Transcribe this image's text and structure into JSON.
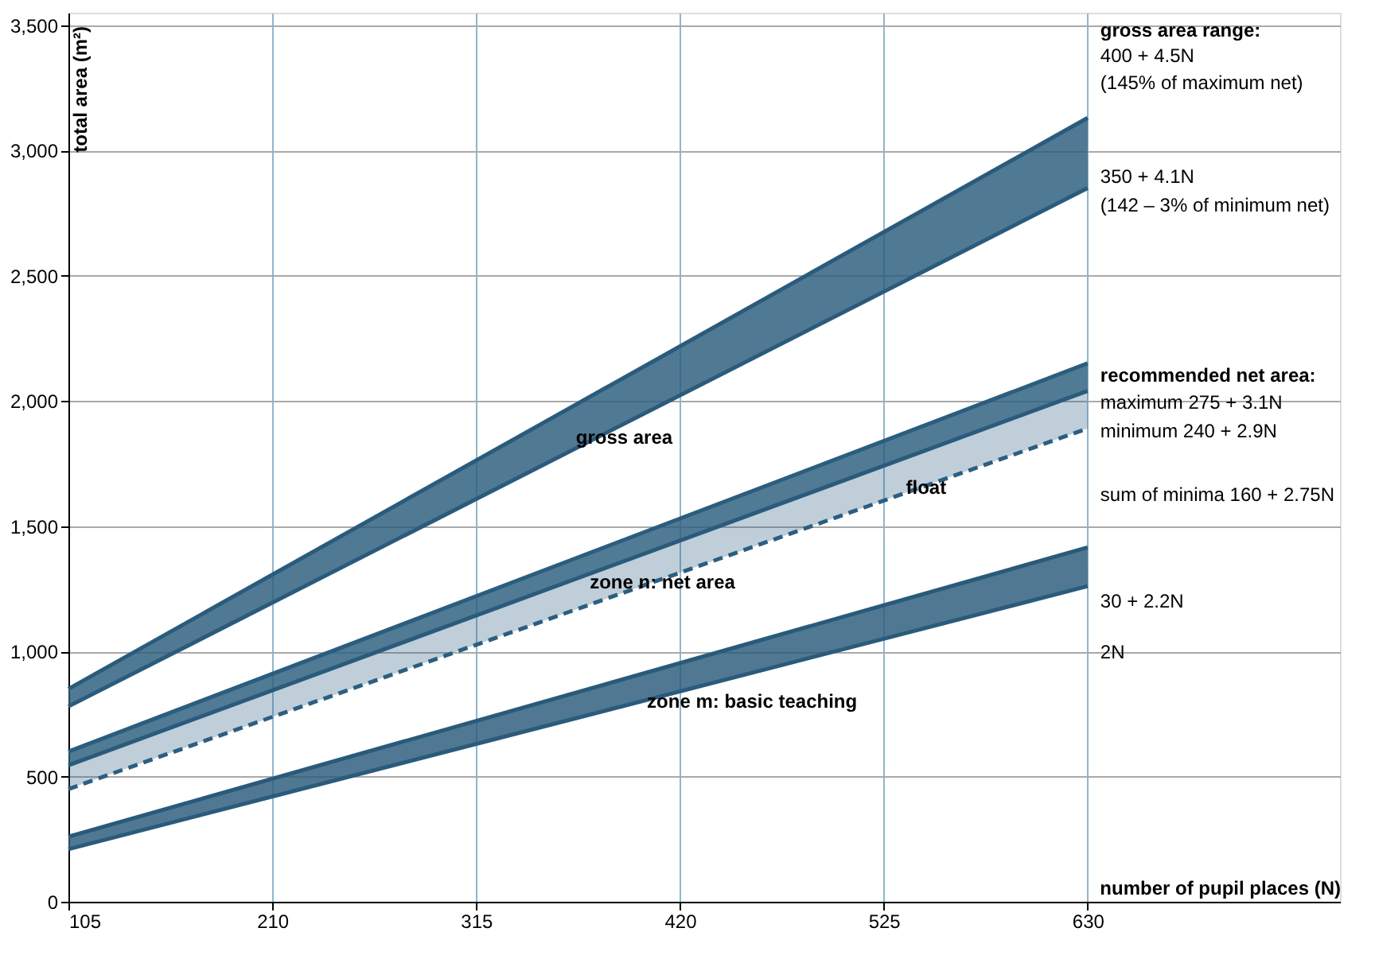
{
  "chart_data": {
    "type": "line",
    "xlabel": "number of pupil places (N)",
    "ylabel": "total area (m²)",
    "x": [
      105,
      630
    ],
    "series": [
      {
        "color": "#2a5b7c",
        "values": [
          850,
          3130
        ],
        "lower": [
          780,
          2850
        ],
        "upper": [
          850,
          3130
        ]
      },
      {
        "color": "#2b5d7e",
        "values": [
          600,
          2150
        ],
        "lower": [
          545,
          2040
        ],
        "upper": [
          600,
          2150
        ]
      },
      {
        "color": "#2c5e80",
        "values": [
          450,
          1890
        ],
        "line_style": "dashed",
        "lower": [
          450,
          1890
        ],
        "upper": [
          545,
          2040
        ]
      },
      {
        "color": "#295a7a",
        "values": [
          260,
          1415
        ],
        "lower": [
          210,
          1260
        ],
        "upper": [
          260,
          1415
        ]
      },
      {
        "color": "#2a5b7c",
        "values": [
          780,
          2850
        ]
      },
      {
        "color": "#2a5b7c",
        "values": [
          545,
          2040
        ]
      },
      {
        "color": "#2a5b7c",
        "values": [
          210,
          1260
        ]
      }
    ],
    "xlim": [
      105,
      760
    ],
    "xticks": [
      105,
      210,
      315,
      420,
      525,
      630
    ],
    "ylim": [
      0,
      3550
    ],
    "yticks": [
      0,
      {
        "value": 500,
        "label": "500"
      },
      {
        "value": 1000,
        "label": "1,000"
      },
      {
        "value": 1500,
        "label": "1,500"
      },
      {
        "value": 2000,
        "label": "2,000"
      },
      {
        "value": 2500,
        "label": "2,500"
      },
      {
        "value": 3000,
        "label": "3,000"
      },
      {
        "value": 3500,
        "label": "3,500"
      }
    ],
    "grid": true,
    "line_style": "solid",
    "annotations": [
      "gross area range:",
      "400 + 4.5N",
      "(145% of maximum net)",
      "350 + 4.1N",
      "(142 – 3% of minimum net)",
      "recommended net area:",
      "maximum 275 + 3.1N",
      "minimum 240 + 2.9N",
      "sum of minima 160 + 2.75N",
      "30 + 2.2N",
      "2N",
      {
        "text": "gross area",
        "x": 350,
        "y": 1930
      },
      {
        "text": "float",
        "x": 520,
        "y": 1730
      },
      "zone n: net area",
      "zone m: basic teaching"
    ]
  }
}
